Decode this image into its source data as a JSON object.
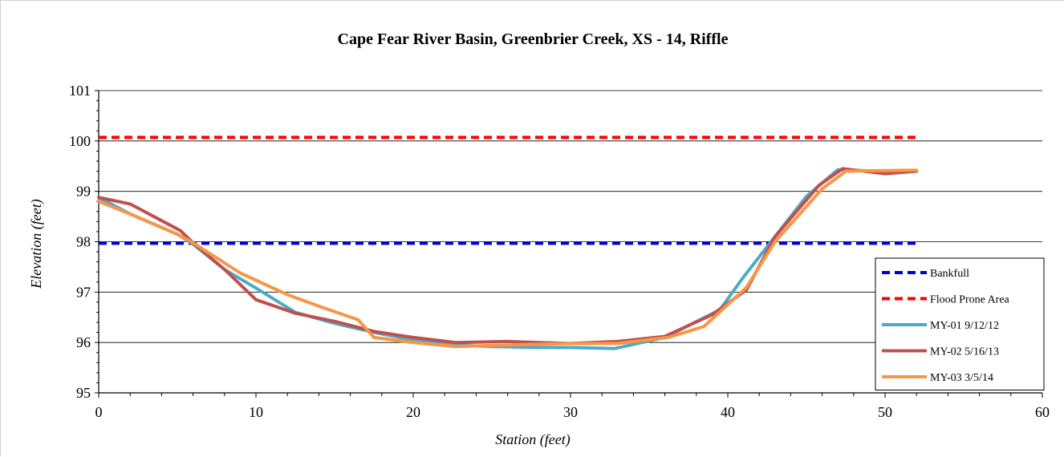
{
  "chart_data": {
    "type": "line",
    "title": "Cape Fear River Basin, Greenbrier Creek, XS - 14, Riffle",
    "xlabel": "Station (feet)",
    "ylabel": "Elevation (feet)",
    "xlim": [
      0,
      60
    ],
    "ylim": [
      95,
      101
    ],
    "x_ticks": [
      0,
      10,
      20,
      30,
      40,
      50,
      60
    ],
    "y_ticks": [
      95,
      96,
      97,
      98,
      99,
      100,
      101
    ],
    "grid": "horizontal",
    "legend_position": "bottom-right",
    "series": [
      {
        "name": "Bankfull",
        "color": "#0000cc",
        "style": "dashed",
        "x": [
          0,
          52
        ],
        "y": [
          97.97,
          97.97
        ]
      },
      {
        "name": "Flood Prone Area",
        "color": "#ff0000",
        "style": "dashed",
        "x": [
          0,
          52
        ],
        "y": [
          100.07,
          100.07
        ]
      },
      {
        "name": "MY-01 9/12/12",
        "color": "#4bacc6",
        "style": "solid",
        "x": [
          0,
          2,
          5,
          6,
          8,
          10,
          12.5,
          15,
          17.5,
          20,
          22.5,
          25,
          27.5,
          30,
          32.8,
          36,
          39.5,
          41,
          43,
          45,
          47,
          49.5,
          52
        ],
        "y": [
          98.88,
          98.55,
          98.15,
          97.95,
          97.45,
          97.08,
          96.6,
          96.38,
          96.2,
          96.05,
          95.95,
          95.92,
          95.9,
          95.9,
          95.88,
          96.1,
          96.65,
          97.3,
          98.1,
          98.9,
          99.43,
          99.4,
          99.4
        ]
      },
      {
        "name": "MY-02 5/16/13",
        "color": "#c0504d",
        "style": "solid",
        "x": [
          0,
          2,
          5.2,
          6,
          8,
          10,
          12.5,
          15,
          17.5,
          20,
          22.7,
          26,
          28,
          30,
          33,
          36,
          39,
          41.2,
          43,
          45.8,
          47.3,
          50,
          52
        ],
        "y": [
          98.88,
          98.75,
          98.22,
          97.98,
          97.45,
          96.85,
          96.58,
          96.42,
          96.22,
          96.1,
          96.0,
          96.02,
          96.0,
          95.98,
          96.02,
          96.12,
          96.55,
          97.05,
          98.1,
          99.12,
          99.45,
          99.35,
          99.4
        ]
      },
      {
        "name": "MY-03 3/5/14",
        "color": "#f79646",
        "style": "solid",
        "x": [
          0,
          2,
          5,
          6,
          9,
          12,
          14,
          16.5,
          17.5,
          20,
          22.7,
          26,
          30,
          33,
          36.2,
          38.5,
          41.2,
          43,
          46,
          47.5,
          52
        ],
        "y": [
          98.8,
          98.55,
          98.15,
          97.98,
          97.38,
          96.95,
          96.72,
          96.45,
          96.1,
          96.0,
          95.92,
          95.95,
          95.98,
          95.98,
          96.1,
          96.32,
          97.1,
          98.0,
          99.05,
          99.4,
          99.42
        ]
      }
    ]
  }
}
